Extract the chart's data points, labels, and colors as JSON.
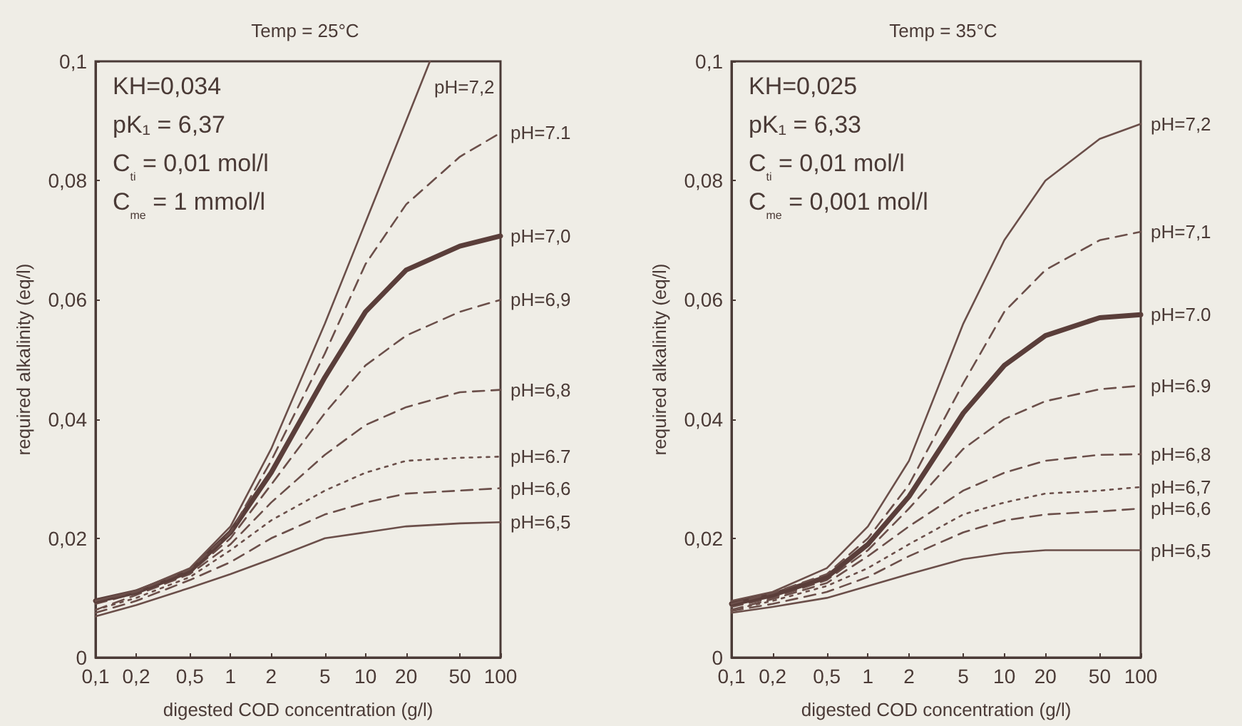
{
  "chart_data": [
    {
      "type": "line",
      "title": "Temp = 25°C",
      "xlabel": "digested COD concentration (g/l)",
      "ylabel": "required alkalinity (eq/l)",
      "log": "x",
      "grid": false,
      "marker": "none",
      "annotations": [
        "KH=0,034",
        "pK₁ = 6,37",
        "C$_{ti}$ = 0,01 mol/l",
        "C$_{me}$ = 1 mmol/l"
      ],
      "xlim": [
        0.1,
        100
      ],
      "xticks": [
        {
          "value": 0.1,
          "label": "0,1"
        },
        {
          "value": 0.2,
          "label": "0,2"
        },
        {
          "value": 0.5,
          "label": "0,5"
        },
        1,
        2,
        5,
        10,
        20,
        50,
        100
      ],
      "ylim": [
        0,
        0.1
      ],
      "yticks": [
        0,
        {
          "value": 0.02,
          "label": "0,02"
        },
        {
          "value": 0.04,
          "label": "0,04"
        },
        {
          "value": 0.06,
          "label": "0,06"
        },
        {
          "value": 0.08,
          "label": "0,08"
        },
        {
          "value": 0.1,
          "label": "0,1"
        }
      ],
      "x": [
        0.1,
        0.2,
        0.5,
        1,
        2,
        5,
        10,
        20,
        50,
        100
      ],
      "series": [
        {
          "name": "pH=6,5",
          "color": "#6b4f4a",
          "line_style": "solid",
          "values": [
            0.0069,
            0.0088,
            0.0117,
            0.014,
            0.0165,
            0.02,
            0.021,
            0.022,
            0.0225,
            0.0227
          ]
        },
        {
          "name": "pH=6,6",
          "color": "#6b4f4a",
          "line_style": "dashed",
          "values": [
            0.0075,
            0.0095,
            0.013,
            0.016,
            0.02,
            0.024,
            0.026,
            0.0275,
            0.028,
            0.0284
          ]
        },
        {
          "name": "pH=6.7",
          "color": "#6b4f4a",
          "line_style": "dotted",
          "values": [
            0.008,
            0.01,
            0.0135,
            0.018,
            0.023,
            0.028,
            0.031,
            0.033,
            0.0335,
            0.0337
          ]
        },
        {
          "name": "pH=6,8",
          "color": "#6b4f4a",
          "line_style": "dashed",
          "values": [
            0.008,
            0.0105,
            0.014,
            0.019,
            0.026,
            0.034,
            0.039,
            0.042,
            0.0445,
            0.0449
          ]
        },
        {
          "name": "pH=6,9",
          "color": "#6b4f4a",
          "line_style": "dashed",
          "values": [
            0.009,
            0.0108,
            0.0142,
            0.02,
            0.029,
            0.041,
            0.049,
            0.054,
            0.058,
            0.06
          ]
        },
        {
          "name": "pH=7,0",
          "color": "#5a3e3a",
          "line_style": "solid",
          "values": [
            0.0095,
            0.011,
            0.0145,
            0.021,
            0.031,
            0.047,
            0.058,
            0.065,
            0.069,
            0.0707
          ]
        },
        {
          "name": "pH=7.1",
          "color": "#6b4f4a",
          "line_style": "dashed",
          "values": [
            0.0095,
            0.011,
            0.0148,
            0.021,
            0.033,
            0.051,
            0.066,
            0.076,
            0.084,
            0.088
          ]
        },
        {
          "name": "pH=7,2",
          "color": "#6b4f4a",
          "line_style": "solid",
          "x": [
            0.1,
            0.2,
            0.5,
            1,
            2,
            5,
            10,
            20,
            30
          ],
          "values": [
            0.0095,
            0.0112,
            0.015,
            0.022,
            0.035,
            0.056,
            0.073,
            0.09,
            0.1
          ]
        }
      ]
    },
    {
      "type": "line",
      "title": "Temp = 35°C",
      "xlabel": "digested COD concentration (g/l)",
      "ylabel": "required alkalinity (eq/l)",
      "log": "x",
      "grid": false,
      "marker": "none",
      "annotations": [
        "KH=0,025",
        "pK₁ = 6,33",
        "C$_{ti}$ = 0,01 mol/l",
        "C$_{me}$ = 0,001 mol/l"
      ],
      "xlim": [
        0.1,
        100
      ],
      "xticks": [
        {
          "value": 0.1,
          "label": "0,1"
        },
        {
          "value": 0.2,
          "label": "0,2"
        },
        {
          "value": 0.5,
          "label": "0,5"
        },
        1,
        2,
        5,
        10,
        20,
        50,
        100
      ],
      "ylim": [
        0,
        0.1
      ],
      "yticks": [
        0,
        {
          "value": 0.02,
          "label": "0,02"
        },
        {
          "value": 0.04,
          "label": "0,04"
        },
        {
          "value": 0.06,
          "label": "0,06"
        },
        {
          "value": 0.08,
          "label": "0,08"
        },
        {
          "value": 0.1,
          "label": "0,1"
        }
      ],
      "x": [
        0.1,
        0.2,
        0.5,
        1,
        2,
        5,
        10,
        20,
        50,
        100
      ],
      "series": [
        {
          "name": "pH=6,5",
          "color": "#6b4f4a",
          "line_style": "solid",
          "values": [
            0.0075,
            0.0085,
            0.01,
            0.012,
            0.014,
            0.0165,
            0.0175,
            0.018,
            0.018,
            0.018
          ]
        },
        {
          "name": "pH=6,6",
          "color": "#6b4f4a",
          "line_style": "dashed",
          "values": [
            0.0078,
            0.009,
            0.011,
            0.0135,
            0.017,
            0.021,
            0.023,
            0.024,
            0.0245,
            0.025
          ]
        },
        {
          "name": "pH=6,7",
          "color": "#6b4f4a",
          "line_style": "dotted",
          "values": [
            0.008,
            0.0095,
            0.012,
            0.015,
            0.019,
            0.024,
            0.026,
            0.0275,
            0.028,
            0.0286
          ]
        },
        {
          "name": "pH=6,8",
          "color": "#6b4f4a",
          "line_style": "dashed",
          "values": [
            0.008,
            0.0098,
            0.0125,
            0.017,
            0.022,
            0.028,
            0.031,
            0.033,
            0.034,
            0.0341
          ]
        },
        {
          "name": "pH=6.9",
          "color": "#6b4f4a",
          "line_style": "dashed",
          "values": [
            0.0085,
            0.01,
            0.013,
            0.018,
            0.025,
            0.035,
            0.04,
            0.043,
            0.045,
            0.0456
          ]
        },
        {
          "name": "pH=7.0",
          "color": "#5a3e3a",
          "line_style": "solid",
          "values": [
            0.009,
            0.0105,
            0.0135,
            0.019,
            0.027,
            0.041,
            0.049,
            0.054,
            0.057,
            0.0575
          ]
        },
        {
          "name": "pH=7,1",
          "color": "#6b4f4a",
          "line_style": "dashed",
          "values": [
            0.009,
            0.0108,
            0.014,
            0.02,
            0.029,
            0.046,
            0.058,
            0.065,
            0.07,
            0.0714
          ]
        },
        {
          "name": "pH=7,2",
          "color": "#6b4f4a",
          "line_style": "solid",
          "values": [
            0.0095,
            0.011,
            0.015,
            0.022,
            0.033,
            0.056,
            0.07,
            0.08,
            0.087,
            0.0895
          ]
        }
      ]
    }
  ]
}
